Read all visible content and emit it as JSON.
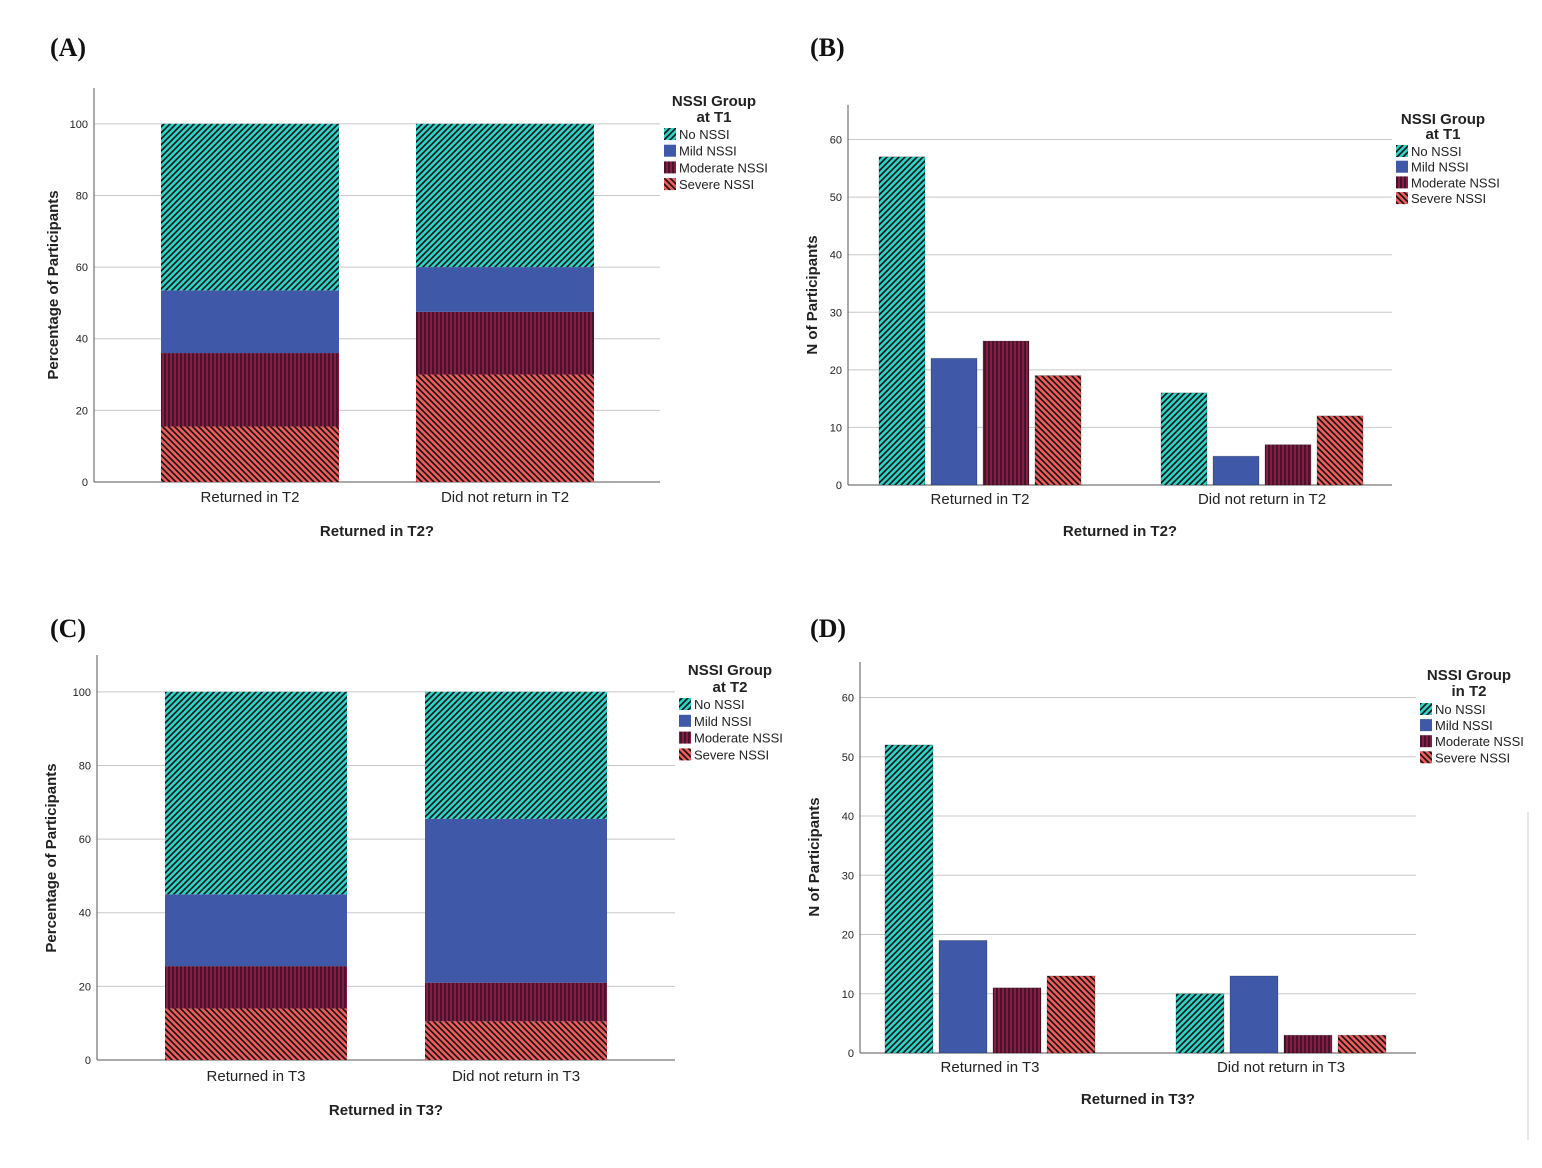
{
  "panels": {
    "a": "(A)",
    "b": "(B)",
    "c": "(C)",
    "d": "(D)"
  },
  "colors": {
    "no_nssi": "#2ad4c8",
    "mild_nssi": "#3f58a8",
    "moderate_nssi": "#8a1a48",
    "severe_nssi": "#ef5a5a"
  },
  "chart_data": [
    {
      "id": "A",
      "type": "bar",
      "stacked": true,
      "categories": [
        "Returned in T2",
        "Did not return in T2"
      ],
      "series": [
        {
          "name": "Severe NSSI",
          "values": [
            15.5,
            30
          ]
        },
        {
          "name": "Moderate NSSI",
          "values": [
            20.5,
            17.5
          ]
        },
        {
          "name": "Mild NSSI",
          "values": [
            17.5,
            12.5
          ]
        },
        {
          "name": "No NSSI",
          "values": [
            46.5,
            40
          ]
        }
      ],
      "xlabel": "Returned in T2?",
      "ylabel": "Percentage of Participants",
      "ylim": [
        0,
        110
      ],
      "yticks": [
        0,
        20,
        40,
        60,
        80,
        100
      ],
      "legend_title": [
        "NSSI Group",
        "at T1"
      ],
      "legend": [
        "No NSSI",
        "Mild NSSI",
        "Moderate NSSI",
        "Severe NSSI"
      ],
      "legend_position": "top-right",
      "grid": true
    },
    {
      "id": "B",
      "type": "bar",
      "stacked": false,
      "categories": [
        "Returned in T2",
        "Did not return in T2"
      ],
      "series": [
        {
          "name": "No NSSI",
          "values": [
            57,
            16
          ]
        },
        {
          "name": "Mild NSSI",
          "values": [
            22,
            5
          ]
        },
        {
          "name": "Moderate NSSI",
          "values": [
            25,
            7
          ]
        },
        {
          "name": "Severe NSSI",
          "values": [
            19,
            12
          ]
        }
      ],
      "xlabel": "Returned in T2?",
      "ylabel": "N of Participants",
      "ylim": [
        0,
        66
      ],
      "yticks": [
        0,
        10,
        20,
        30,
        40,
        50,
        60
      ],
      "legend_title": [
        "NSSI Group",
        "at T1"
      ],
      "legend": [
        "No NSSI",
        "Mild NSSI",
        "Moderate NSSI",
        "Severe NSSI"
      ],
      "legend_position": "top-right",
      "grid": true
    },
    {
      "id": "C",
      "type": "bar",
      "stacked": true,
      "categories": [
        "Returned in T3",
        "Did not return in T3"
      ],
      "series": [
        {
          "name": "Severe NSSI",
          "values": [
            14,
            10.5
          ]
        },
        {
          "name": "Moderate NSSI",
          "values": [
            11.5,
            10.5
          ]
        },
        {
          "name": "Mild NSSI",
          "values": [
            19.5,
            44.5
          ]
        },
        {
          "name": "No NSSI",
          "values": [
            55,
            34.5
          ]
        }
      ],
      "xlabel": "Returned in T3?",
      "ylabel": "Percentage of Participants",
      "ylim": [
        0,
        110
      ],
      "yticks": [
        0,
        20,
        40,
        60,
        80,
        100
      ],
      "legend_title": [
        "NSSI Group",
        "at T2"
      ],
      "legend": [
        "No NSSI",
        "Mild NSSI",
        "Moderate NSSI",
        "Severe NSSI"
      ],
      "legend_position": "top-right",
      "grid": true
    },
    {
      "id": "D",
      "type": "bar",
      "stacked": false,
      "categories": [
        "Returned in T3",
        "Did not return in T3"
      ],
      "series": [
        {
          "name": "No NSSI",
          "values": [
            52,
            10
          ]
        },
        {
          "name": "Mild NSSI",
          "values": [
            19,
            13
          ]
        },
        {
          "name": "Moderate NSSI",
          "values": [
            11,
            3
          ]
        },
        {
          "name": "Severe NSSI",
          "values": [
            13,
            3
          ]
        }
      ],
      "xlabel": "Returned in T3?",
      "ylabel": "N of Participants",
      "ylim": [
        0,
        66
      ],
      "yticks": [
        0,
        10,
        20,
        30,
        40,
        50,
        60
      ],
      "legend_title": [
        "NSSI Group",
        "in T2"
      ],
      "legend": [
        "No NSSI",
        "Mild NSSI",
        "Moderate NSSI",
        "Severe NSSI"
      ],
      "legend_position": "top-right",
      "grid": true
    }
  ]
}
